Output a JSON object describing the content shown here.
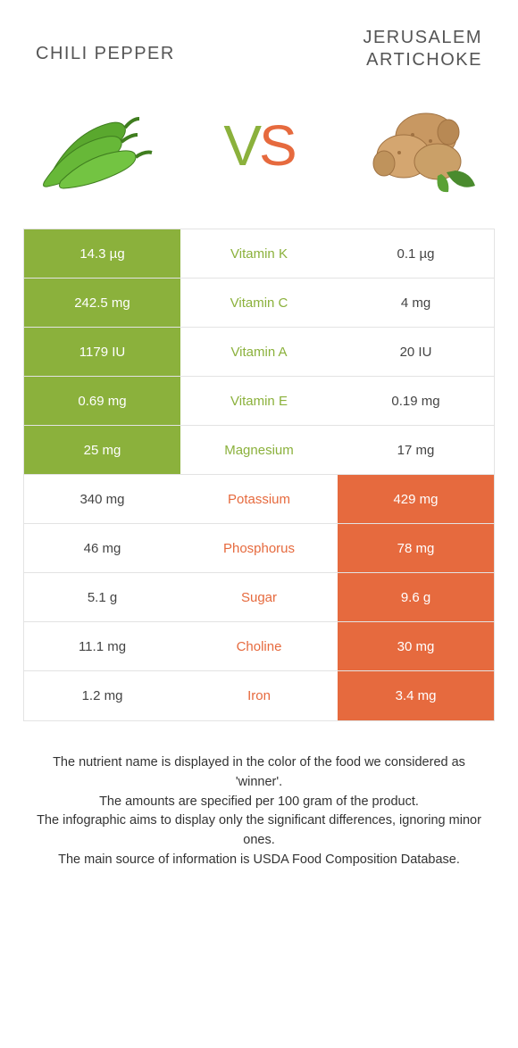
{
  "colors": {
    "green": "#8bb13c",
    "orange": "#e66a3e"
  },
  "foods": {
    "left": {
      "name": "CHILI PEPPER",
      "image_alt": "green chili peppers"
    },
    "right": {
      "name": "JERUSALEM ARTICHOKE",
      "image_alt": "jerusalem artichoke tubers"
    }
  },
  "vs_label": {
    "v": "V",
    "s": "S"
  },
  "rows": [
    {
      "nutrient": "Vitamin K",
      "left": "14.3 µg",
      "right": "0.1 µg",
      "winner": "left"
    },
    {
      "nutrient": "Vitamin C",
      "left": "242.5 mg",
      "right": "4 mg",
      "winner": "left"
    },
    {
      "nutrient": "Vitamin A",
      "left": "1179 IU",
      "right": "20 IU",
      "winner": "left"
    },
    {
      "nutrient": "Vitamin E",
      "left": "0.69 mg",
      "right": "0.19 mg",
      "winner": "left"
    },
    {
      "nutrient": "Magnesium",
      "left": "25 mg",
      "right": "17 mg",
      "winner": "left"
    },
    {
      "nutrient": "Potassium",
      "left": "340 mg",
      "right": "429 mg",
      "winner": "right"
    },
    {
      "nutrient": "Phosphorus",
      "left": "46 mg",
      "right": "78 mg",
      "winner": "right"
    },
    {
      "nutrient": "Sugar",
      "left": "5.1 g",
      "right": "9.6 g",
      "winner": "right"
    },
    {
      "nutrient": "Choline",
      "left": "11.1 mg",
      "right": "30 mg",
      "winner": "right"
    },
    {
      "nutrient": "Iron",
      "left": "1.2 mg",
      "right": "3.4 mg",
      "winner": "right"
    }
  ],
  "footer": {
    "line1": "The nutrient name is displayed in the color of the food we considered as 'winner'.",
    "line2": "The amounts are specified per 100 gram of the product.",
    "line3": "The infographic aims to display only the significant differences, ignoring minor ones.",
    "line4": "The main source of information is USDA Food Composition Database."
  }
}
